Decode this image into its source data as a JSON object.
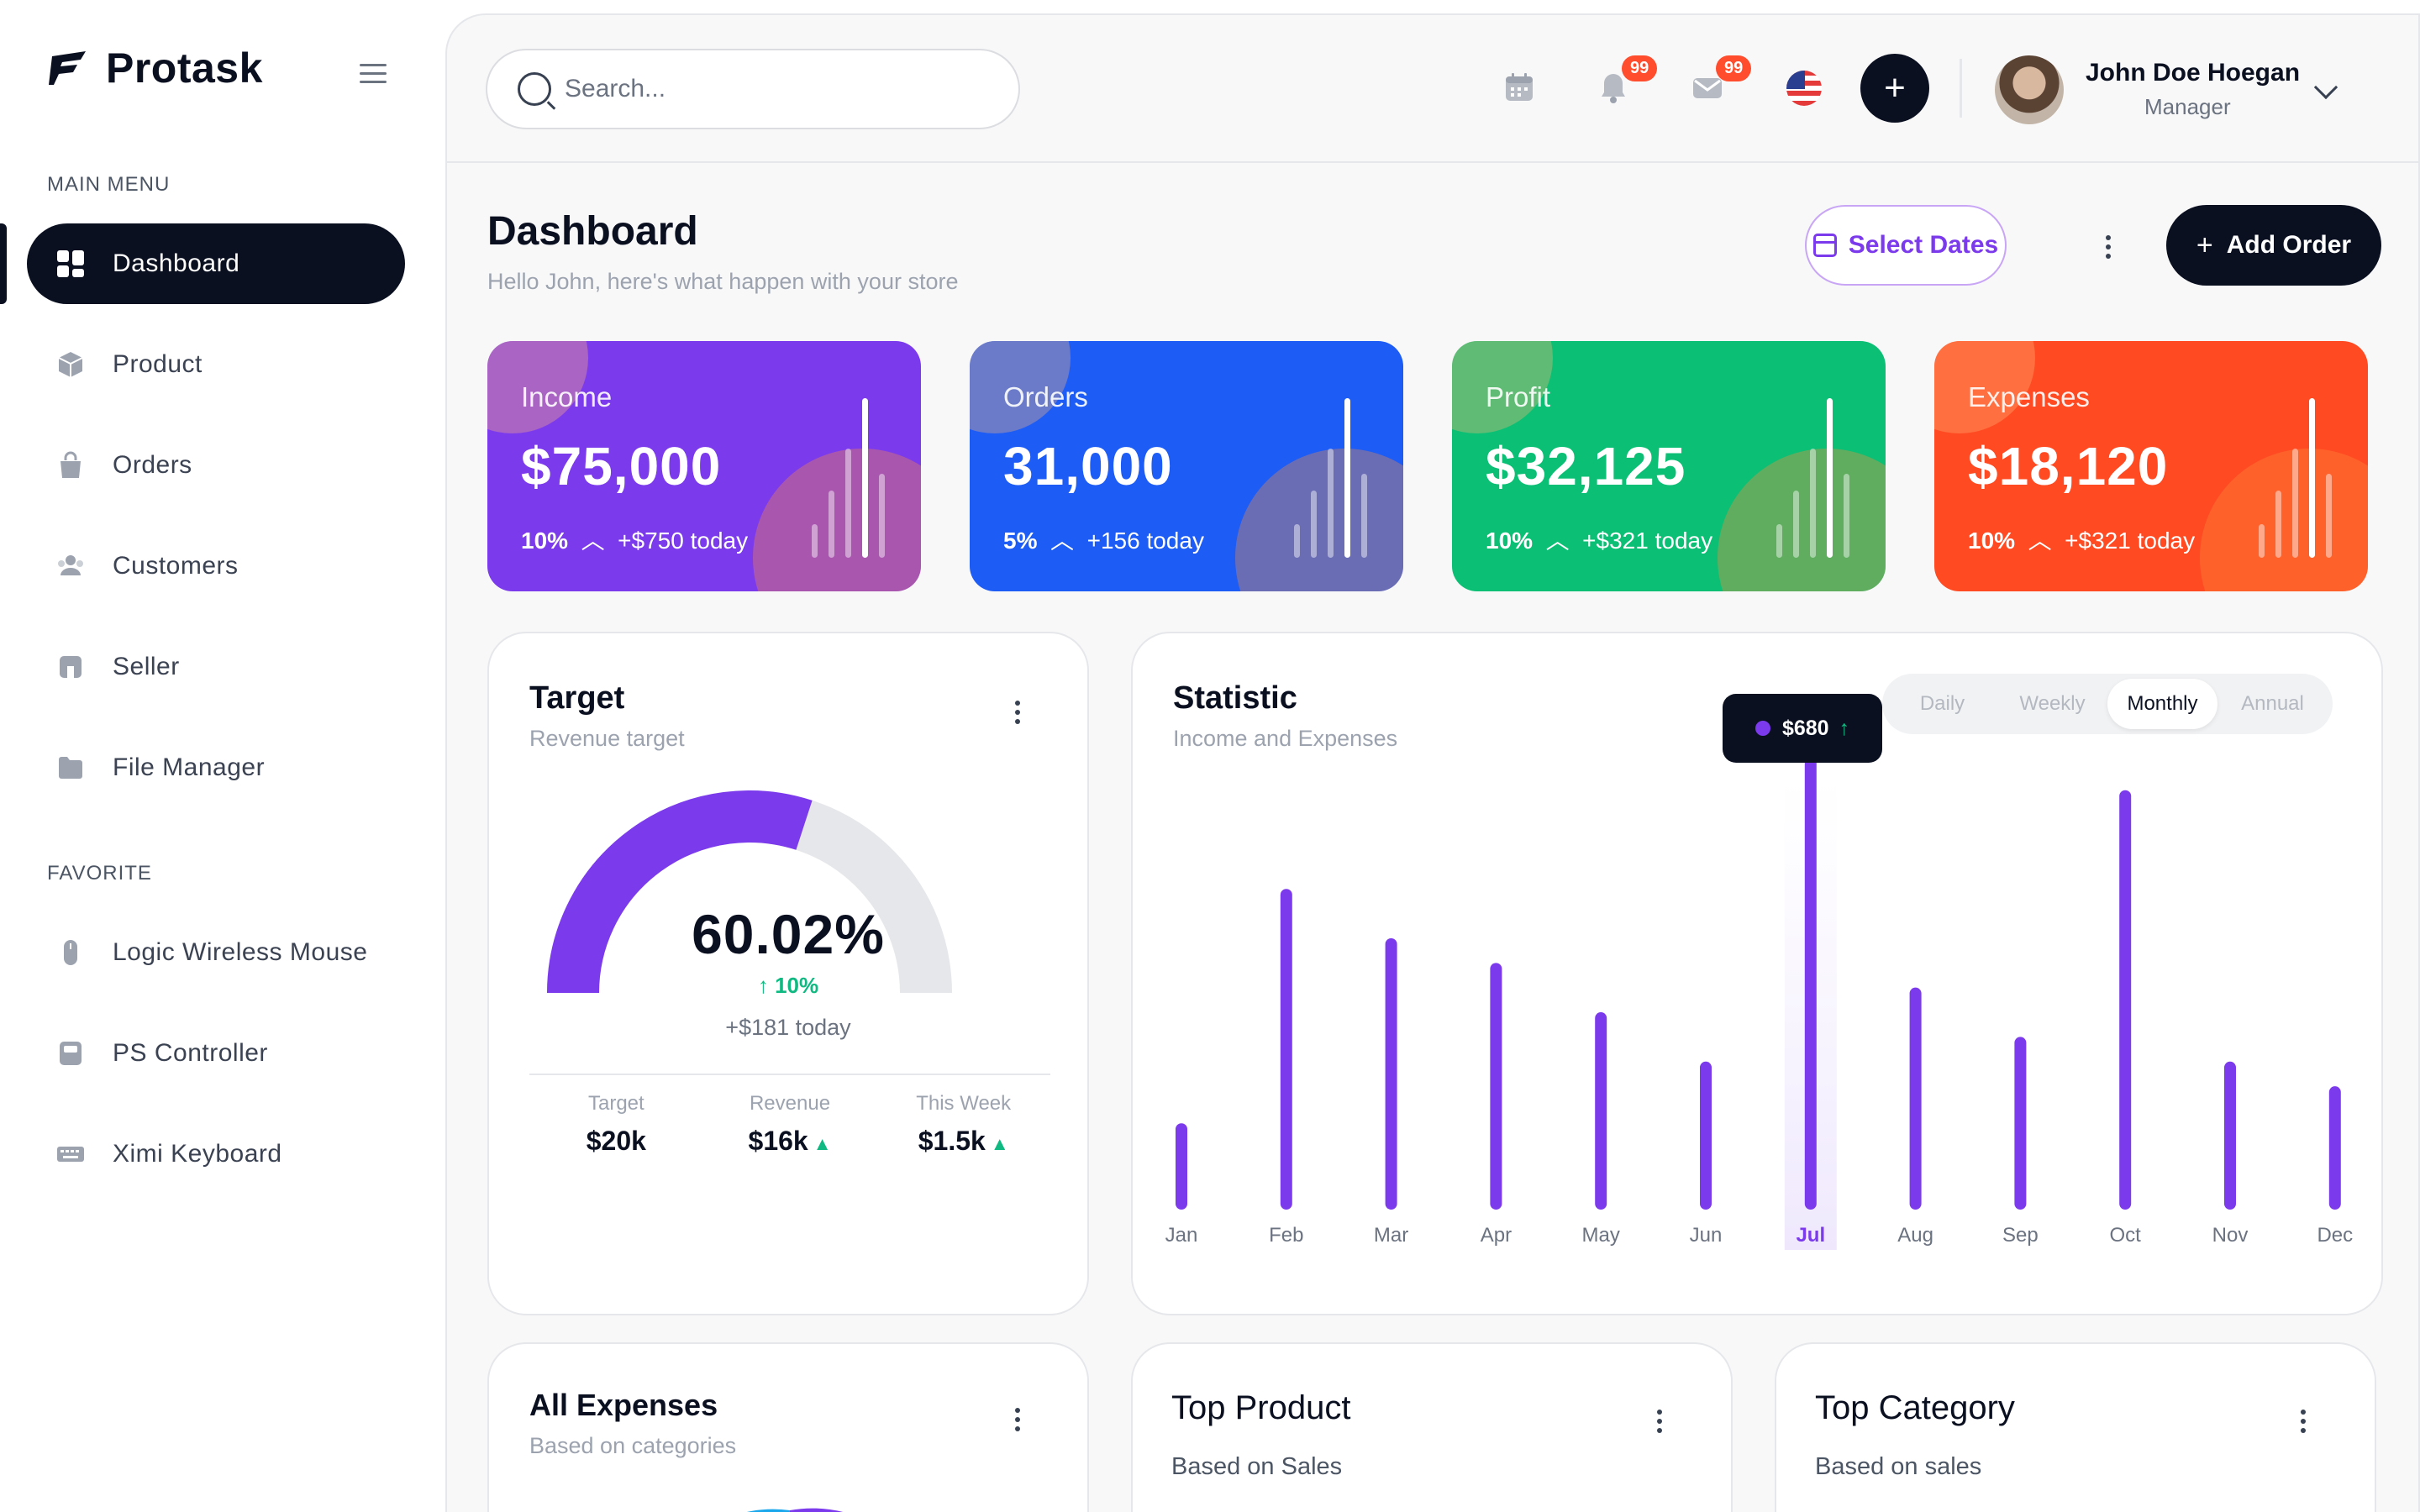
{
  "app": {
    "name": "Protask"
  },
  "sidebar": {
    "main_menu_label": "MAIN MENU",
    "favorite_label": "FAVORITE",
    "items": [
      {
        "label": "Dashboard",
        "icon": "dashboard-icon",
        "active": true
      },
      {
        "label": "Product",
        "icon": "box-icon"
      },
      {
        "label": "Orders",
        "icon": "bag-icon"
      },
      {
        "label": "Customers",
        "icon": "users-icon"
      },
      {
        "label": "Seller",
        "icon": "store-icon"
      },
      {
        "label": "File Manager",
        "icon": "folder-icon"
      }
    ],
    "favorites": [
      {
        "label": "Logic Wireless Mouse",
        "icon": "mouse-icon"
      },
      {
        "label": "PS Controller",
        "icon": "gamepad-icon"
      },
      {
        "label": "Ximi Keyboard",
        "icon": "keyboard-icon"
      }
    ]
  },
  "topbar": {
    "search_placeholder": "Search...",
    "notifications_badge": "99",
    "messages_badge": "99",
    "user": {
      "name": "John Doe Hoegan",
      "role": "Manager"
    }
  },
  "header": {
    "title": "Dashboard",
    "subtitle": "Hello John, here's what happen with your store",
    "select_dates_label": "Select Dates",
    "add_order_label": "Add Order"
  },
  "stats": [
    {
      "label": "Income",
      "value": "$75,000",
      "pct": "10%",
      "delta": "+$750 today",
      "color": "#7c3aed"
    },
    {
      "label": "Orders",
      "value": "31,000",
      "pct": "5%",
      "delta": "+156 today",
      "color": "#1d5cf5"
    },
    {
      "label": "Profit",
      "value": "$32,125",
      "pct": "10%",
      "delta": "+$321 today",
      "color": "#0bbf74"
    },
    {
      "label": "Expenses",
      "value": "$18,120",
      "pct": "10%",
      "delta": "+$321 today",
      "color": "#ff4a22"
    }
  ],
  "target": {
    "title": "Target",
    "subtitle": "Revenue target",
    "percent": "60.02%",
    "percent_value": 60.02,
    "change": "↑ 10%",
    "today": "+$181 today",
    "metrics": [
      {
        "label": "Target",
        "value": "$20k",
        "up": false
      },
      {
        "label": "Revenue",
        "value": "$16k",
        "up": true
      },
      {
        "label": "This Week",
        "value": "$1.5k",
        "up": true
      }
    ]
  },
  "statistic": {
    "title": "Statistic",
    "subtitle": "Income and Expenses",
    "tabs": [
      "Daily",
      "Weekly",
      "Monthly",
      "Annual"
    ],
    "active_tab": "Monthly",
    "tooltip_value": "$680",
    "tooltip_arrow": "↑",
    "accent": "#7c3aed"
  },
  "chart_data": {
    "type": "bar",
    "categories": [
      "Jan",
      "Feb",
      "Mar",
      "Apr",
      "May",
      "Jun",
      "Jul",
      "Aug",
      "Sep",
      "Oct",
      "Nov",
      "Dec"
    ],
    "values": [
      140,
      520,
      440,
      400,
      320,
      240,
      760,
      360,
      280,
      680,
      240,
      200
    ],
    "highlight": "Jul",
    "ylim": [
      0,
      760
    ]
  },
  "bottom_panels": [
    {
      "title": "All Expenses",
      "subtitle": "Based on categories"
    },
    {
      "title": "Top Product",
      "subtitle": "Based on Sales"
    },
    {
      "title": "Top Category",
      "subtitle": "Based on sales"
    }
  ]
}
